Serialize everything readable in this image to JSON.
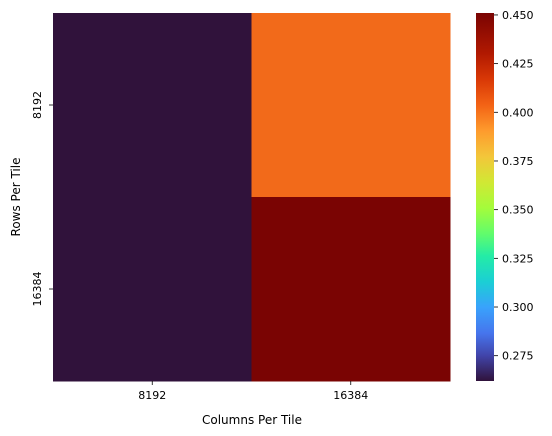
{
  "chart_data": {
    "type": "heatmap",
    "xlabel": "Columns Per Tile",
    "ylabel": "Rows Per Tile",
    "x_categories": [
      "8192",
      "16384"
    ],
    "y_categories": [
      "8192",
      "16384"
    ],
    "values": [
      [
        0.262,
        0.41
      ],
      [
        0.262,
        0.451
      ]
    ],
    "colorbar": {
      "vmin": 0.262,
      "vmax": 0.451,
      "colormap": "turbo",
      "ticks": [
        "0.275",
        "0.300",
        "0.325",
        "0.350",
        "0.375",
        "0.400",
        "0.425",
        "0.450"
      ]
    },
    "grid": false,
    "colors": {
      "low": "#30123b",
      "mid_orange": "#f26a1a",
      "high": "#7a0403"
    }
  }
}
